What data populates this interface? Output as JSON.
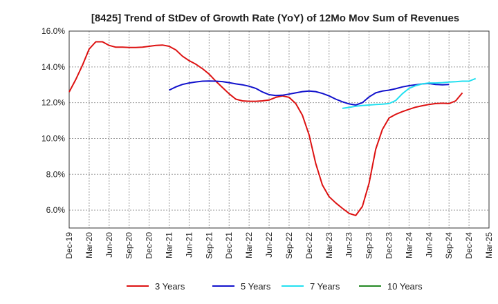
{
  "chart_data": {
    "type": "line",
    "title": "[8425]  Trend of StDev of Growth Rate (YoY) of 12Mo Mov Sum of Revenues",
    "xlabel": "",
    "ylabel": "",
    "ylim": [
      5.0,
      16.0
    ],
    "grid": true,
    "legend_position": "bottom",
    "x_ticks": [
      "Dec-19",
      "Mar-20",
      "Jun-20",
      "Sep-20",
      "Dec-20",
      "Mar-21",
      "Jun-21",
      "Sep-21",
      "Dec-21",
      "Mar-22",
      "Jun-22",
      "Sep-22",
      "Dec-22",
      "Mar-23",
      "Jun-23",
      "Sep-23",
      "Dec-23",
      "Mar-24",
      "Jun-24",
      "Sep-24",
      "Dec-24",
      "Mar-25"
    ],
    "y_ticks": [
      {
        "value": 6,
        "label": "6.0%"
      },
      {
        "value": 8,
        "label": "8.0%"
      },
      {
        "value": 10,
        "label": "10.0%"
      },
      {
        "value": 12,
        "label": "12.0%"
      },
      {
        "value": 14,
        "label": "14.0%"
      },
      {
        "value": 16,
        "label": "16.0%"
      }
    ],
    "series": [
      {
        "name": "3 Years",
        "color": "#dd1111",
        "start_index": 0,
        "values": [
          12.6,
          13.3,
          14.1,
          15.0,
          15.4,
          15.4,
          15.2,
          15.1,
          15.1,
          15.08,
          15.08,
          15.1,
          15.15,
          15.2,
          15.22,
          15.15,
          14.95,
          14.6,
          14.35,
          14.15,
          13.9,
          13.6,
          13.2,
          12.85,
          12.5,
          12.2,
          12.1,
          12.08,
          12.08,
          12.1,
          12.15,
          12.3,
          12.38,
          12.3,
          11.95,
          11.3,
          10.2,
          8.6,
          7.4,
          6.75,
          6.4,
          6.1,
          5.82,
          5.7,
          6.2,
          7.5,
          9.4,
          10.5,
          11.15,
          11.35,
          11.5,
          11.63,
          11.75,
          11.83,
          11.9,
          11.95,
          11.97,
          11.95,
          12.1,
          12.55
        ]
      },
      {
        "name": "5 Years",
        "color": "#1111cc",
        "start_index": 15,
        "values": [
          12.7,
          12.88,
          13.02,
          13.1,
          13.16,
          13.2,
          13.21,
          13.2,
          13.18,
          13.12,
          13.05,
          13.0,
          12.92,
          12.8,
          12.6,
          12.45,
          12.4,
          12.42,
          12.48,
          12.55,
          12.62,
          12.65,
          12.62,
          12.52,
          12.38,
          12.2,
          12.05,
          11.93,
          11.87,
          12.0,
          12.32,
          12.55,
          12.65,
          12.7,
          12.78,
          12.88,
          12.95,
          13.0,
          13.05,
          13.07,
          13.02,
          13.0,
          13.02
        ]
      },
      {
        "name": "7 Years",
        "color": "#22e0f0",
        "start_index": 41,
        "values": [
          11.68,
          11.74,
          11.8,
          11.84,
          11.87,
          11.9,
          11.92,
          11.95,
          12.12,
          12.5,
          12.8,
          12.95,
          13.05,
          13.1,
          13.1,
          13.12,
          13.15,
          13.17,
          13.2,
          13.2,
          13.35
        ]
      },
      {
        "name": "10 Years",
        "color": "#228822",
        "start_index": 0,
        "values": []
      }
    ]
  }
}
